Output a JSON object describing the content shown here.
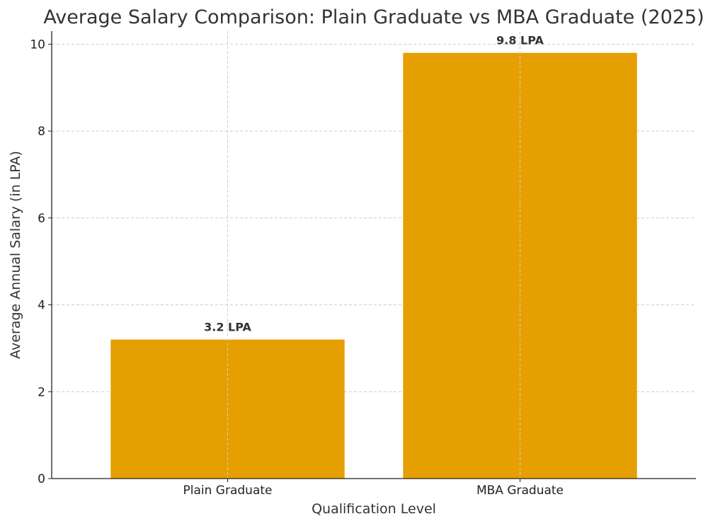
{
  "chart_data": {
    "type": "bar",
    "title": "Average Salary Comparison: Plain Graduate vs MBA Graduate (2025)",
    "xlabel": "Qualification Level",
    "ylabel": "Average Annual Salary (in LPA)",
    "categories": [
      "Plain Graduate",
      "MBA Graduate"
    ],
    "values": [
      3.2,
      9.8
    ],
    "data_labels": [
      "3.2 LPA",
      "9.8 LPA"
    ],
    "ylim": [
      0,
      10.3
    ],
    "yticks": [
      0,
      2,
      4,
      6,
      8,
      10
    ],
    "grid": true,
    "bar_color": "#E69F00"
  }
}
